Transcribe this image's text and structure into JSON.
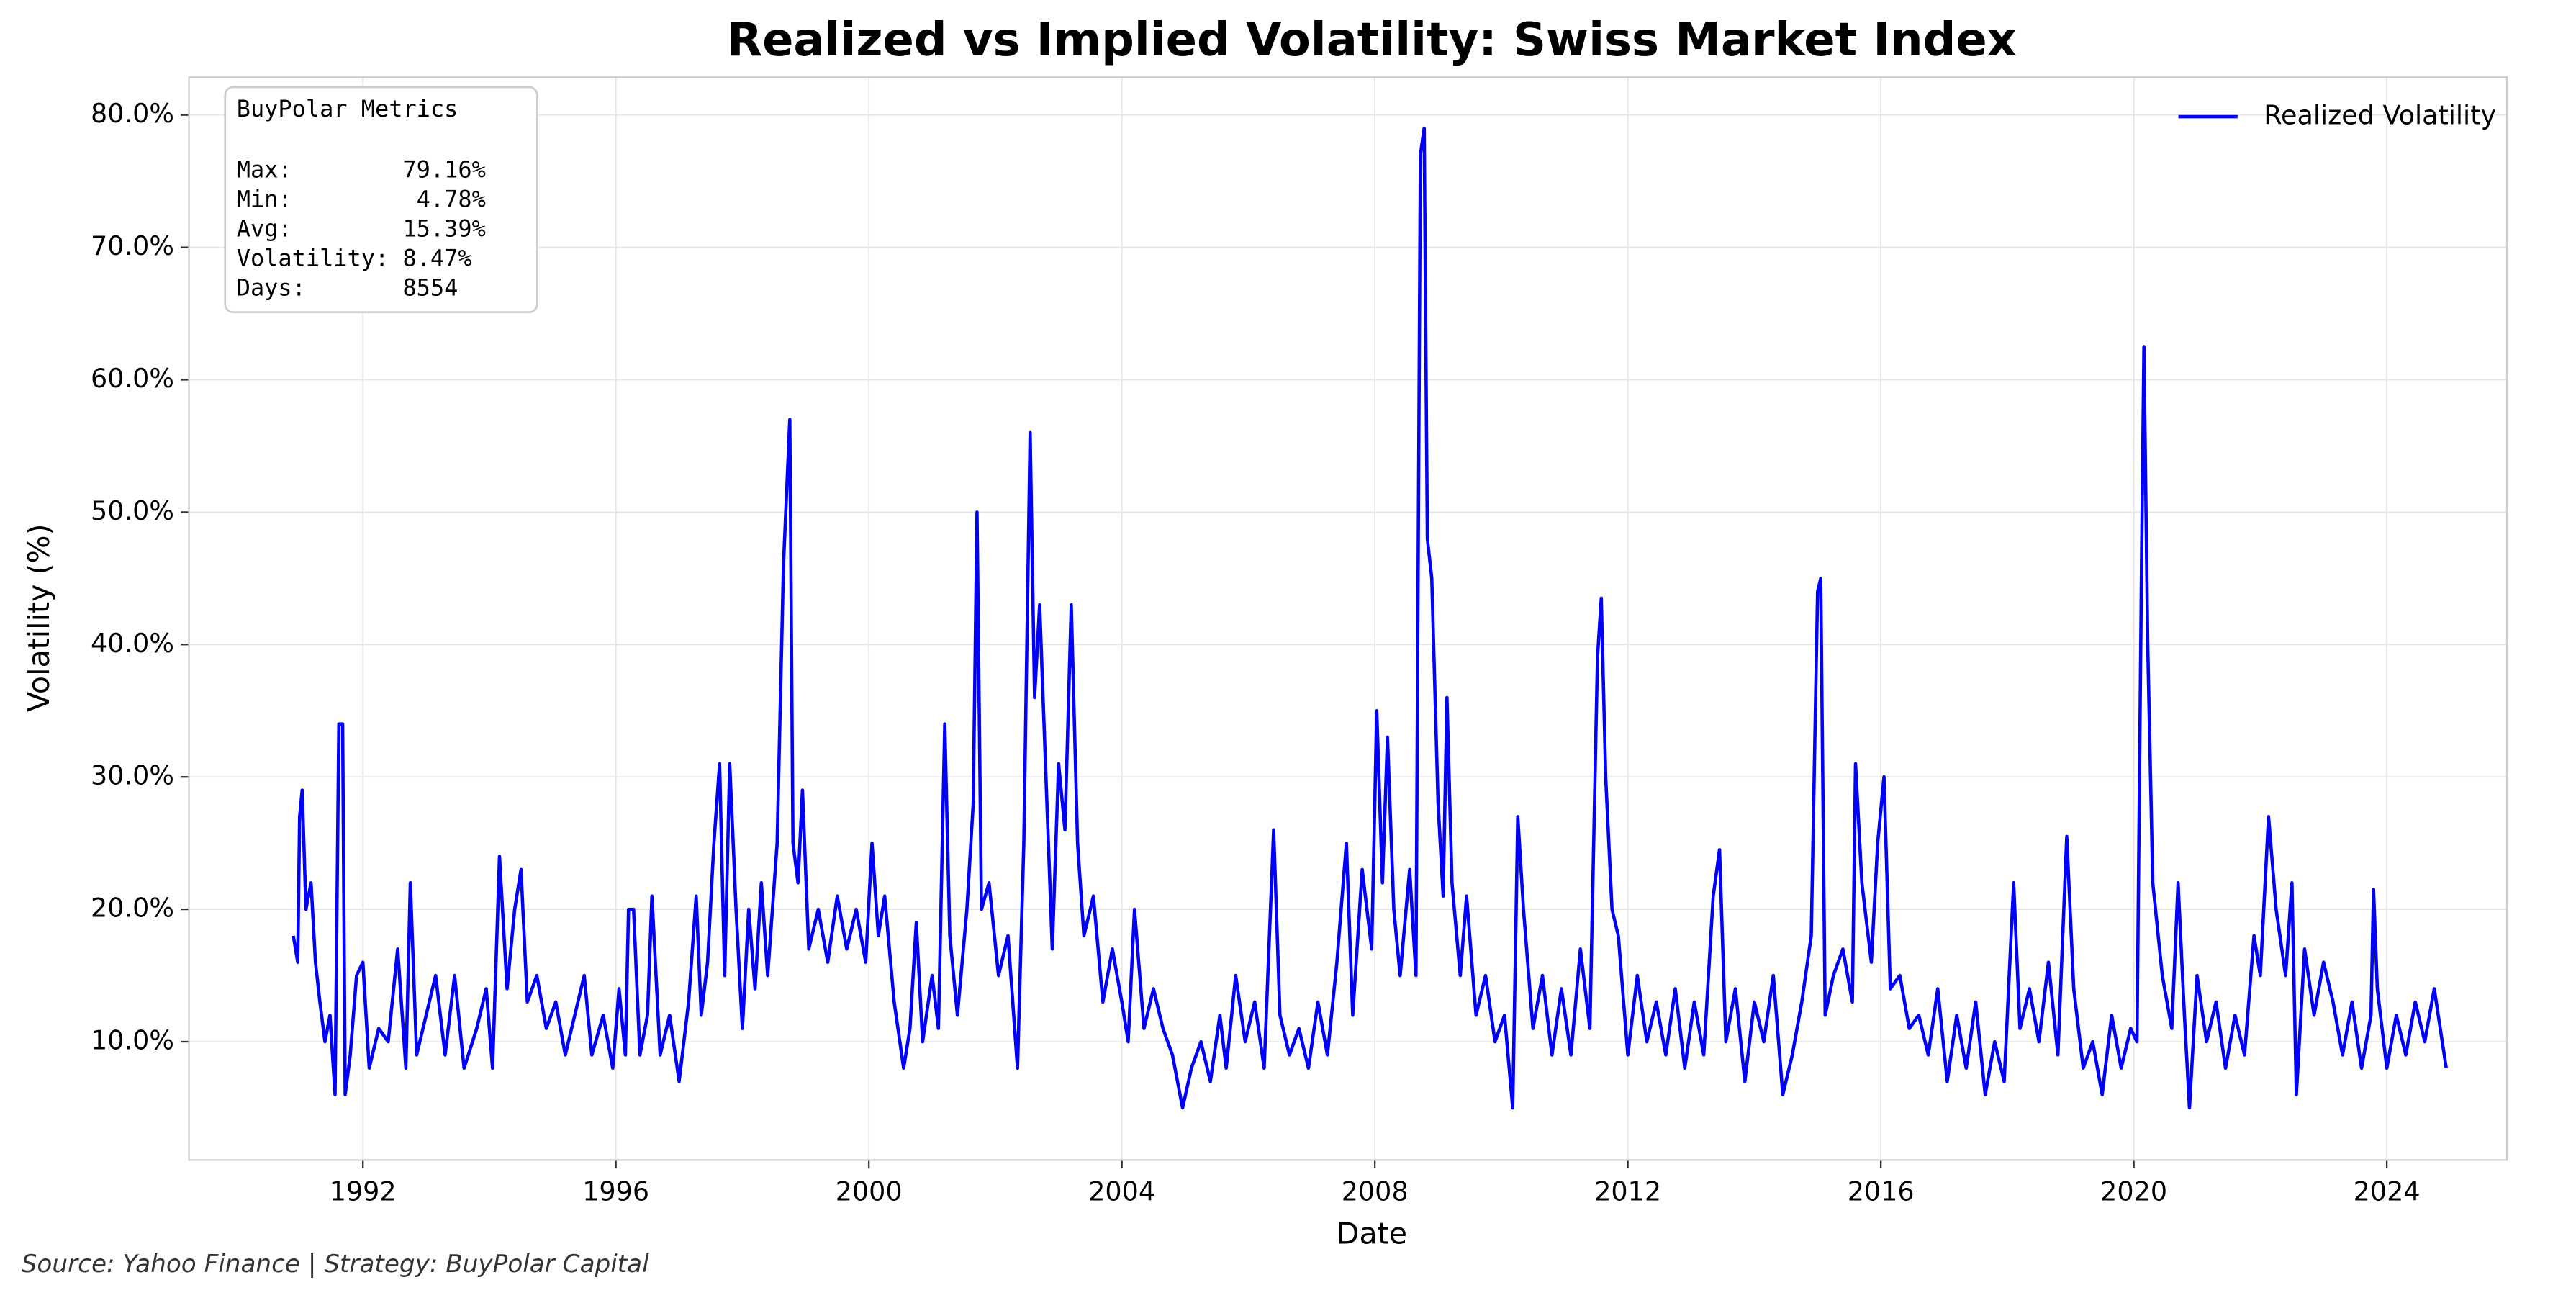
{
  "chart_data": {
    "type": "line",
    "title": "Realized vs Implied Volatility: Swiss Market Index",
    "xlabel": "Date",
    "ylabel": "Volatility (%)",
    "source": "Source: Yahoo Finance | Strategy: BuyPolar Capital",
    "stats_box": {
      "title": "BuyPolar Metrics",
      "lines": [
        "Max:        79.16%",
        "Min:         4.78%",
        "Avg:        15.39%",
        "Volatility: 8.47%",
        "Days:       8554"
      ]
    },
    "legend": "upper right",
    "grid": true,
    "xlim": [
      1989.25,
      2025.9
    ],
    "xticks": [
      1992,
      1996,
      2000,
      2004,
      2008,
      2012,
      2016,
      2020,
      2024
    ],
    "ylim": [
      1.06,
      82.85
    ],
    "yticks": [
      {
        "value": 10,
        "label": "10.0%"
      },
      {
        "value": 20,
        "label": "20.0%"
      },
      {
        "value": 30,
        "label": "30.0%"
      },
      {
        "value": 40,
        "label": "40.0%"
      },
      {
        "value": 50,
        "label": "50.0%"
      },
      {
        "value": 60,
        "label": "60.0%"
      },
      {
        "value": 70,
        "label": "70.0%"
      },
      {
        "value": 80,
        "label": "80.0%"
      }
    ],
    "x": [
      1990.9,
      1990.97,
      1991.0,
      1991.04,
      1991.1,
      1991.18,
      1991.25,
      1991.32,
      1991.4,
      1991.48,
      1991.56,
      1991.62,
      1991.68,
      1991.72,
      1991.8,
      1991.9,
      1992.0,
      1992.1,
      1992.25,
      1992.4,
      1992.55,
      1992.68,
      1992.75,
      1992.85,
      1993.0,
      1993.15,
      1993.3,
      1993.45,
      1993.6,
      1993.8,
      1993.95,
      1994.05,
      1994.16,
      1994.28,
      1994.4,
      1994.5,
      1994.6,
      1994.75,
      1994.9,
      1995.05,
      1995.2,
      1995.35,
      1995.5,
      1995.62,
      1995.8,
      1995.95,
      1996.05,
      1996.15,
      1996.2,
      1996.28,
      1996.38,
      1996.5,
      1996.57,
      1996.7,
      1996.85,
      1997.0,
      1997.15,
      1997.27,
      1997.35,
      1997.45,
      1997.55,
      1997.64,
      1997.72,
      1997.8,
      1997.9,
      1998.0,
      1998.1,
      1998.2,
      1998.3,
      1998.4,
      1998.55,
      1998.65,
      1998.75,
      1998.8,
      1998.88,
      1998.95,
      1999.05,
      1999.2,
      1999.35,
      1999.5,
      1999.65,
      1999.8,
      1999.95,
      2000.05,
      2000.15,
      2000.25,
      2000.4,
      2000.55,
      2000.65,
      2000.75,
      2000.85,
      2001.0,
      2001.1,
      2001.2,
      2001.28,
      2001.4,
      2001.55,
      2001.65,
      2001.71,
      2001.78,
      2001.9,
      2002.05,
      2002.2,
      2002.35,
      2002.45,
      2002.55,
      2002.62,
      2002.7,
      2002.8,
      2002.9,
      2003.0,
      2003.1,
      2003.2,
      2003.3,
      2003.4,
      2003.55,
      2003.7,
      2003.85,
      2004.0,
      2004.1,
      2004.2,
      2004.35,
      2004.5,
      2004.65,
      2004.8,
      2004.96,
      2005.1,
      2005.25,
      2005.4,
      2005.55,
      2005.65,
      2005.8,
      2005.95,
      2006.1,
      2006.25,
      2006.4,
      2006.5,
      2006.65,
      2006.8,
      2006.95,
      2007.1,
      2007.25,
      2007.4,
      2007.55,
      2007.65,
      2007.8,
      2007.95,
      2008.03,
      2008.12,
      2008.2,
      2008.3,
      2008.4,
      2008.55,
      2008.65,
      2008.72,
      2008.78,
      2008.83,
      2008.9,
      2009.0,
      2009.08,
      2009.14,
      2009.22,
      2009.35,
      2009.45,
      2009.6,
      2009.75,
      2009.9,
      2010.05,
      2010.18,
      2010.26,
      2010.35,
      2010.5,
      2010.65,
      2010.8,
      2010.95,
      2011.1,
      2011.25,
      2011.4,
      2011.52,
      2011.58,
      2011.65,
      2011.75,
      2011.85,
      2012.0,
      2012.15,
      2012.3,
      2012.45,
      2012.6,
      2012.75,
      2012.9,
      2013.05,
      2013.2,
      2013.35,
      2013.45,
      2013.55,
      2013.7,
      2013.85,
      2014.0,
      2014.15,
      2014.3,
      2014.45,
      2014.6,
      2014.75,
      2014.9,
      2015.0,
      2015.05,
      2015.12,
      2015.25,
      2015.4,
      2015.55,
      2015.6,
      2015.7,
      2015.85,
      2015.95,
      2016.05,
      2016.15,
      2016.3,
      2016.45,
      2016.6,
      2016.75,
      2016.9,
      2017.05,
      2017.2,
      2017.35,
      2017.5,
      2017.65,
      2017.8,
      2017.95,
      2018.05,
      2018.1,
      2018.2,
      2018.35,
      2018.5,
      2018.65,
      2018.8,
      2018.94,
      2019.05,
      2019.2,
      2019.35,
      2019.5,
      2019.65,
      2019.8,
      2019.95,
      2020.05,
      2020.12,
      2020.16,
      2020.22,
      2020.3,
      2020.45,
      2020.6,
      2020.7,
      2020.8,
      2020.88,
      2021.0,
      2021.15,
      2021.3,
      2021.45,
      2021.6,
      2021.75,
      2021.9,
      2022.0,
      2022.13,
      2022.25,
      2022.4,
      2022.5,
      2022.57,
      2022.7,
      2022.85,
      2023.0,
      2023.15,
      2023.3,
      2023.45,
      2023.6,
      2023.75,
      2023.79,
      2023.85,
      2024.0,
      2024.15,
      2024.3,
      2024.45,
      2024.6,
      2024.75,
      2024.94
    ],
    "series": [
      {
        "name": "Realized Volatility",
        "color": "#0000ff",
        "values": [
          18,
          16,
          27,
          29,
          20,
          22,
          16,
          13,
          10,
          12,
          6,
          34,
          34,
          6,
          9,
          15,
          16,
          8,
          11,
          10,
          17,
          8,
          22,
          9,
          12,
          15,
          9,
          15,
          8,
          11,
          14,
          8,
          24,
          14,
          20,
          23,
          13,
          15,
          11,
          13,
          9,
          12,
          15,
          9,
          12,
          8,
          14,
          9,
          20,
          20,
          9,
          12,
          21,
          9,
          12,
          7,
          13,
          21,
          12,
          16,
          25,
          31,
          15,
          31,
          20,
          11,
          20,
          14,
          22,
          15,
          25,
          46,
          57,
          25,
          22,
          29,
          17,
          20,
          16,
          21,
          17,
          20,
          16,
          25,
          18,
          21,
          13,
          8,
          11,
          19,
          10,
          15,
          11,
          34,
          18,
          12,
          20,
          28,
          50,
          20,
          22,
          15,
          18,
          8,
          25,
          56,
          36,
          43,
          30,
          17,
          31,
          26,
          43,
          25,
          18,
          21,
          13,
          17,
          13,
          10,
          20,
          11,
          14,
          11,
          9,
          5,
          8,
          10,
          7,
          12,
          8,
          15,
          10,
          13,
          8,
          26,
          12,
          9,
          11,
          8,
          13,
          9,
          16,
          25,
          12,
          23,
          17,
          35,
          22,
          33,
          20,
          15,
          23,
          15,
          77,
          79,
          48,
          45,
          28,
          21,
          36,
          22,
          15,
          21,
          12,
          15,
          10,
          12,
          5,
          27,
          20,
          11,
          15,
          9,
          14,
          9,
          17,
          11,
          39,
          43.5,
          30,
          20,
          18,
          9,
          15,
          10,
          13,
          9,
          14,
          8,
          13,
          9,
          21,
          24.5,
          10,
          14,
          7,
          13,
          10,
          15,
          6,
          9,
          13,
          18,
          44,
          45,
          12,
          15,
          17,
          13,
          31,
          22,
          16,
          25,
          30,
          14,
          15,
          11,
          12,
          9,
          14,
          7,
          12,
          8,
          13,
          6,
          10,
          7,
          17,
          22,
          11,
          14,
          10,
          16,
          9,
          25.5,
          14,
          8,
          10,
          6,
          12,
          8,
          11,
          10,
          45,
          62.5,
          40,
          22,
          15,
          11,
          22,
          12,
          5,
          15,
          10,
          13,
          8,
          12,
          9,
          18,
          15,
          27,
          20,
          15,
          22,
          6,
          17,
          12,
          16,
          13,
          9,
          13,
          8,
          12,
          21.5,
          14,
          8,
          12,
          9,
          13,
          10,
          14,
          8
        ]
      }
    ]
  }
}
